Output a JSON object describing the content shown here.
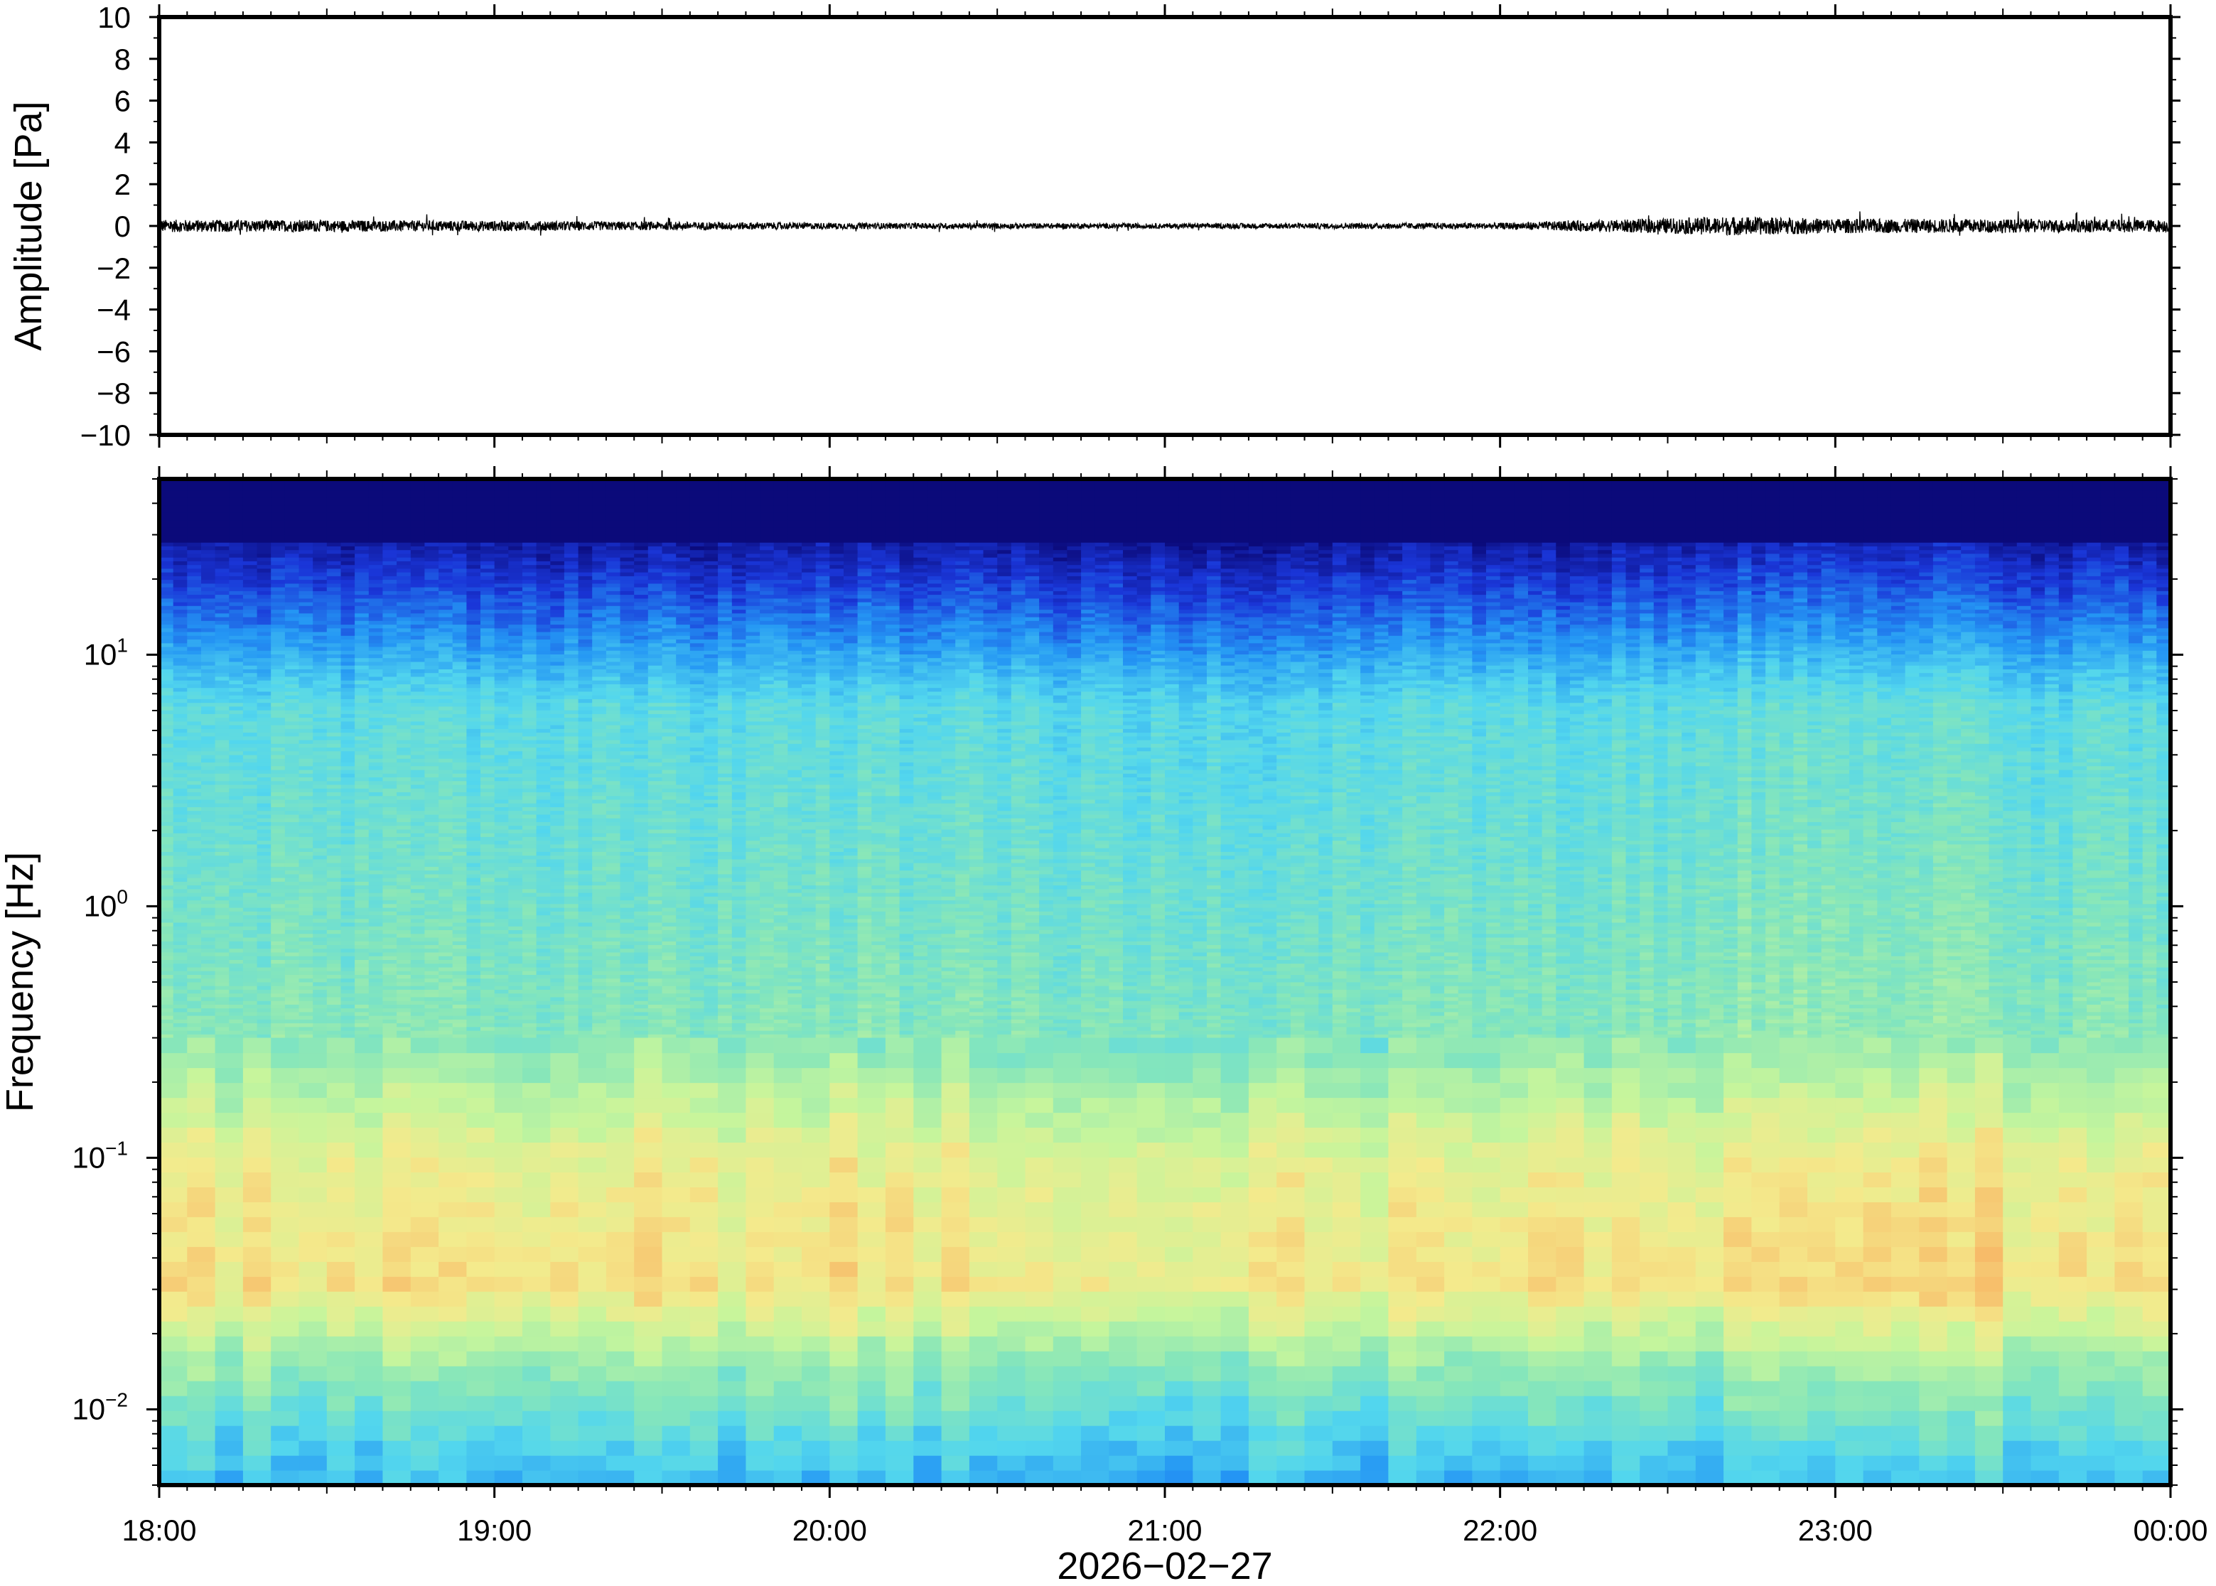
{
  "chart_data": [
    {
      "type": "line",
      "ylabel": "Amplitude [Pa]",
      "ylim": [
        -10,
        10
      ],
      "yticks": [
        "10",
        "8",
        "6",
        "4",
        "2",
        "0",
        "−2",
        "−4",
        "−6",
        "−8",
        "−10"
      ],
      "ytick_values": [
        10,
        8,
        6,
        4,
        2,
        0,
        -2,
        -4,
        -6,
        -8,
        -10
      ],
      "xlim": [
        "18:00",
        "00:00"
      ],
      "series_color": "#000000",
      "noise_profile": {
        "segment_hours": [
          18,
          19,
          20,
          21,
          22,
          22.7,
          23,
          24
        ],
        "peak_amplitude_pa": [
          0.3,
          0.25,
          0.15,
          0.12,
          0.15,
          0.45,
          0.35,
          0.3
        ]
      },
      "grid": false
    },
    {
      "type": "heatmap",
      "ylabel": "Frequency [Hz]",
      "yscale": "log",
      "ylim_hz": [
        0.005,
        50
      ],
      "yticks": [
        {
          "base": "10",
          "exp": "1",
          "value": 10
        },
        {
          "base": "10",
          "exp": "0",
          "value": 1
        },
        {
          "base": "10",
          "exp": "−1",
          "value": 0.1
        },
        {
          "base": "10",
          "exp": "−2",
          "value": 0.01
        }
      ],
      "xticks": [
        "18:00",
        "19:00",
        "20:00",
        "21:00",
        "22:00",
        "23:00",
        "00:00"
      ],
      "xlabel": "2026−02−27",
      "colormap": "jet",
      "colormap_colors": [
        "#0b0a7a",
        "#1a36d8",
        "#2496f4",
        "#52d6ee",
        "#86e6ba",
        "#c6f59c",
        "#f4ea8c",
        "#f7bd6a",
        "#f08a50"
      ],
      "grid": false
    }
  ]
}
